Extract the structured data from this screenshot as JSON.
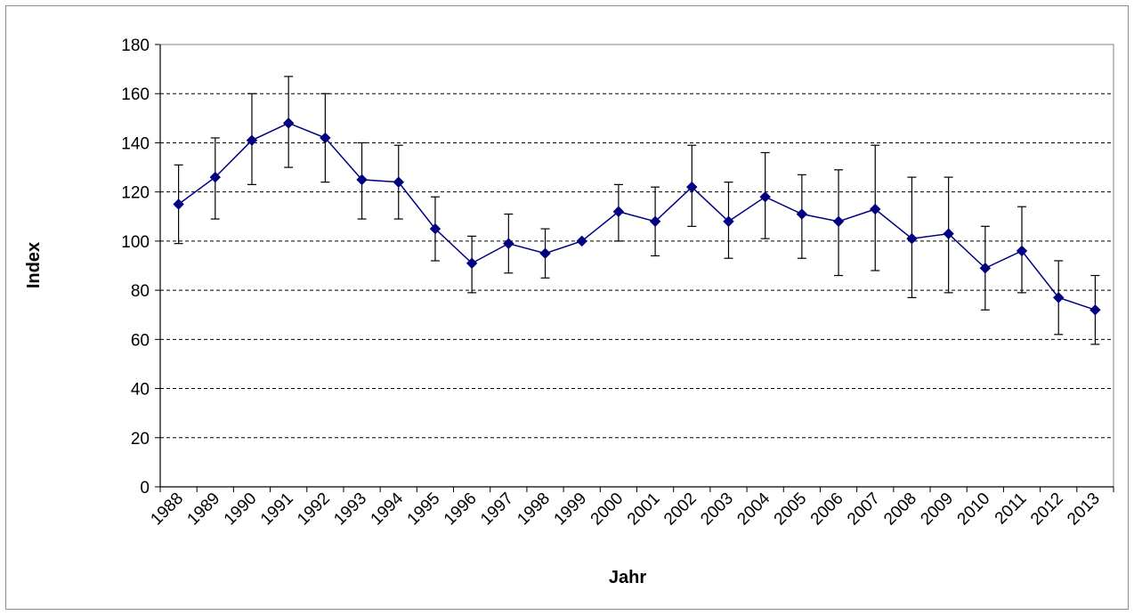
{
  "chart_data": {
    "type": "line",
    "title": "",
    "xlabel": "Jahr",
    "ylabel": "Index",
    "ylim": [
      0,
      180
    ],
    "yticks": [
      0,
      20,
      40,
      60,
      80,
      100,
      120,
      140,
      160,
      180
    ],
    "ytick_labels": [
      "0",
      "20",
      "40",
      "60",
      "80",
      "100",
      "120",
      "140",
      "160",
      "180"
    ],
    "grid": true,
    "legend": "none",
    "categories": [
      "1988",
      "1989",
      "1990",
      "1991",
      "1992",
      "1993",
      "1994",
      "1995",
      "1996",
      "1997",
      "1998",
      "1999",
      "2000",
      "2001",
      "2002",
      "2003",
      "2004",
      "2005",
      "2006",
      "2007",
      "2008",
      "2009",
      "2010",
      "2011",
      "2012",
      "2013"
    ],
    "series": [
      {
        "color": "#000080",
        "marker": "diamond",
        "values": [
          115,
          126,
          141,
          148,
          142,
          125,
          124,
          105,
          91,
          99,
          95,
          100,
          112,
          108,
          122,
          108,
          118,
          111,
          108,
          113,
          101,
          103,
          89,
          96,
          77,
          72
        ],
        "error_low": [
          99,
          109,
          123,
          130,
          124,
          109,
          109,
          92,
          79,
          87,
          85,
          100,
          100,
          94,
          106,
          93,
          101,
          93,
          86,
          88,
          77,
          79,
          72,
          79,
          62,
          58
        ],
        "error_high": [
          131,
          142,
          160,
          167,
          160,
          140,
          139,
          118,
          102,
          111,
          105,
          100,
          123,
          122,
          139,
          124,
          136,
          127,
          129,
          139,
          126,
          126,
          106,
          114,
          92,
          86
        ]
      }
    ]
  }
}
